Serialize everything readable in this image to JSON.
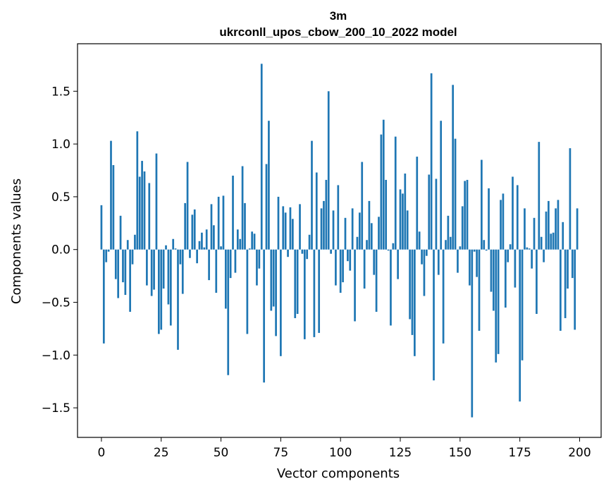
{
  "chart_data": {
    "type": "bar",
    "title": "3m",
    "subtitle": "ukrconll_upos_cbow_200_10_2022 model",
    "xlabel": "Vector components",
    "ylabel": "Components values",
    "xlim": [
      -10,
      209
    ],
    "ylim": [
      -1.78,
      1.95
    ],
    "xticks": [
      0,
      25,
      50,
      75,
      100,
      125,
      150,
      175,
      200
    ],
    "yticks": [
      -1.5,
      -1.0,
      -0.5,
      0.0,
      0.5,
      1.0,
      1.5
    ],
    "ytick_labels": [
      "−1.5",
      "−1.0",
      "−0.5",
      "0.0",
      "0.5",
      "1.0",
      "1.5"
    ],
    "grid": false,
    "bar_color": "#1f77b4",
    "x": [
      0,
      1,
      2,
      3,
      4,
      5,
      6,
      7,
      8,
      9,
      10,
      11,
      12,
      13,
      14,
      15,
      16,
      17,
      18,
      19,
      20,
      21,
      22,
      23,
      24,
      25,
      26,
      27,
      28,
      29,
      30,
      31,
      32,
      33,
      34,
      35,
      36,
      37,
      38,
      39,
      40,
      41,
      42,
      43,
      44,
      45,
      46,
      47,
      48,
      49,
      50,
      51,
      52,
      53,
      54,
      55,
      56,
      57,
      58,
      59,
      60,
      61,
      62,
      63,
      64,
      65,
      66,
      67,
      68,
      69,
      70,
      71,
      72,
      73,
      74,
      75,
      76,
      77,
      78,
      79,
      80,
      81,
      82,
      83,
      84,
      85,
      86,
      87,
      88,
      89,
      90,
      91,
      92,
      93,
      94,
      95,
      96,
      97,
      98,
      99,
      100,
      101,
      102,
      103,
      104,
      105,
      106,
      107,
      108,
      109,
      110,
      111,
      112,
      113,
      114,
      115,
      116,
      117,
      118,
      119,
      120,
      121,
      122,
      123,
      124,
      125,
      126,
      127,
      128,
      129,
      130,
      131,
      132,
      133,
      134,
      135,
      136,
      137,
      138,
      139,
      140,
      141,
      142,
      143,
      144,
      145,
      146,
      147,
      148,
      149,
      150,
      151,
      152,
      153,
      154,
      155,
      156,
      157,
      158,
      159,
      160,
      161,
      162,
      163,
      164,
      165,
      166,
      167,
      168,
      169,
      170,
      171,
      172,
      173,
      174,
      175,
      176,
      177,
      178,
      179,
      180,
      181,
      182,
      183,
      184,
      185,
      186,
      187,
      188,
      189,
      190,
      191,
      192,
      193,
      194,
      195,
      196,
      197,
      198,
      199
    ],
    "values": [
      0.42,
      -0.89,
      -0.12,
      -0.02,
      1.03,
      0.8,
      -0.28,
      -0.46,
      0.32,
      -0.31,
      -0.43,
      0.09,
      -0.59,
      -0.14,
      0.14,
      1.12,
      0.69,
      0.84,
      0.74,
      -0.34,
      0.63,
      -0.44,
      -0.38,
      0.91,
      -0.8,
      -0.76,
      -0.37,
      0.04,
      -0.52,
      -0.72,
      0.1,
      0.01,
      -0.95,
      -0.14,
      -0.42,
      0.44,
      0.83,
      -0.08,
      0.33,
      0.38,
      -0.13,
      0.08,
      0.16,
      0.02,
      0.19,
      -0.29,
      0.43,
      0.23,
      -0.41,
      0.5,
      0.03,
      0.51,
      -0.56,
      -1.19,
      -0.27,
      0.7,
      -0.22,
      0.19,
      0.1,
      0.79,
      0.44,
      -0.8,
      0.01,
      0.17,
      0.15,
      -0.34,
      -0.18,
      1.76,
      -1.26,
      0.81,
      1.22,
      -0.58,
      -0.54,
      -0.82,
      0.5,
      -1.01,
      0.41,
      0.35,
      -0.07,
      0.4,
      0.29,
      -0.65,
      -0.61,
      0.43,
      -0.04,
      -0.85,
      -0.09,
      0.14,
      1.03,
      -0.83,
      0.73,
      -0.79,
      0.39,
      0.46,
      0.66,
      1.5,
      -0.04,
      0.37,
      -0.34,
      0.61,
      -0.41,
      -0.31,
      0.3,
      -0.11,
      -0.2,
      0.39,
      -0.68,
      0.12,
      0.35,
      0.83,
      -0.37,
      0.09,
      0.46,
      0.25,
      -0.24,
      -0.59,
      0.31,
      1.09,
      1.23,
      0.66,
      -0.01,
      -0.72,
      0.06,
      1.07,
      -0.28,
      0.57,
      0.53,
      0.72,
      0.37,
      -0.66,
      -0.81,
      -1.01,
      0.88,
      0.17,
      -0.14,
      -0.44,
      -0.06,
      0.71,
      1.67,
      -1.24,
      0.67,
      -0.24,
      1.22,
      -0.89,
      0.09,
      0.32,
      0.12,
      1.56,
      1.05,
      -0.22,
      0.03,
      0.41,
      0.65,
      0.66,
      -0.34,
      -1.59,
      -0.02,
      -0.26,
      -0.77,
      0.85,
      0.09,
      -0.01,
      0.58,
      -0.4,
      -0.58,
      -1.07,
      -0.99,
      0.47,
      0.53,
      -0.55,
      -0.12,
      0.05,
      0.69,
      -0.36,
      0.61,
      -1.44,
      -1.05,
      0.39,
      0.02,
      0.01,
      -0.18,
      0.3,
      -0.61,
      1.02,
      0.12,
      -0.12,
      0.36,
      0.46,
      0.15,
      0.16,
      0.39,
      0.47,
      -0.77,
      0.26,
      -0.65,
      -0.37,
      0.96,
      -0.27,
      -0.76,
      0.39
    ]
  }
}
